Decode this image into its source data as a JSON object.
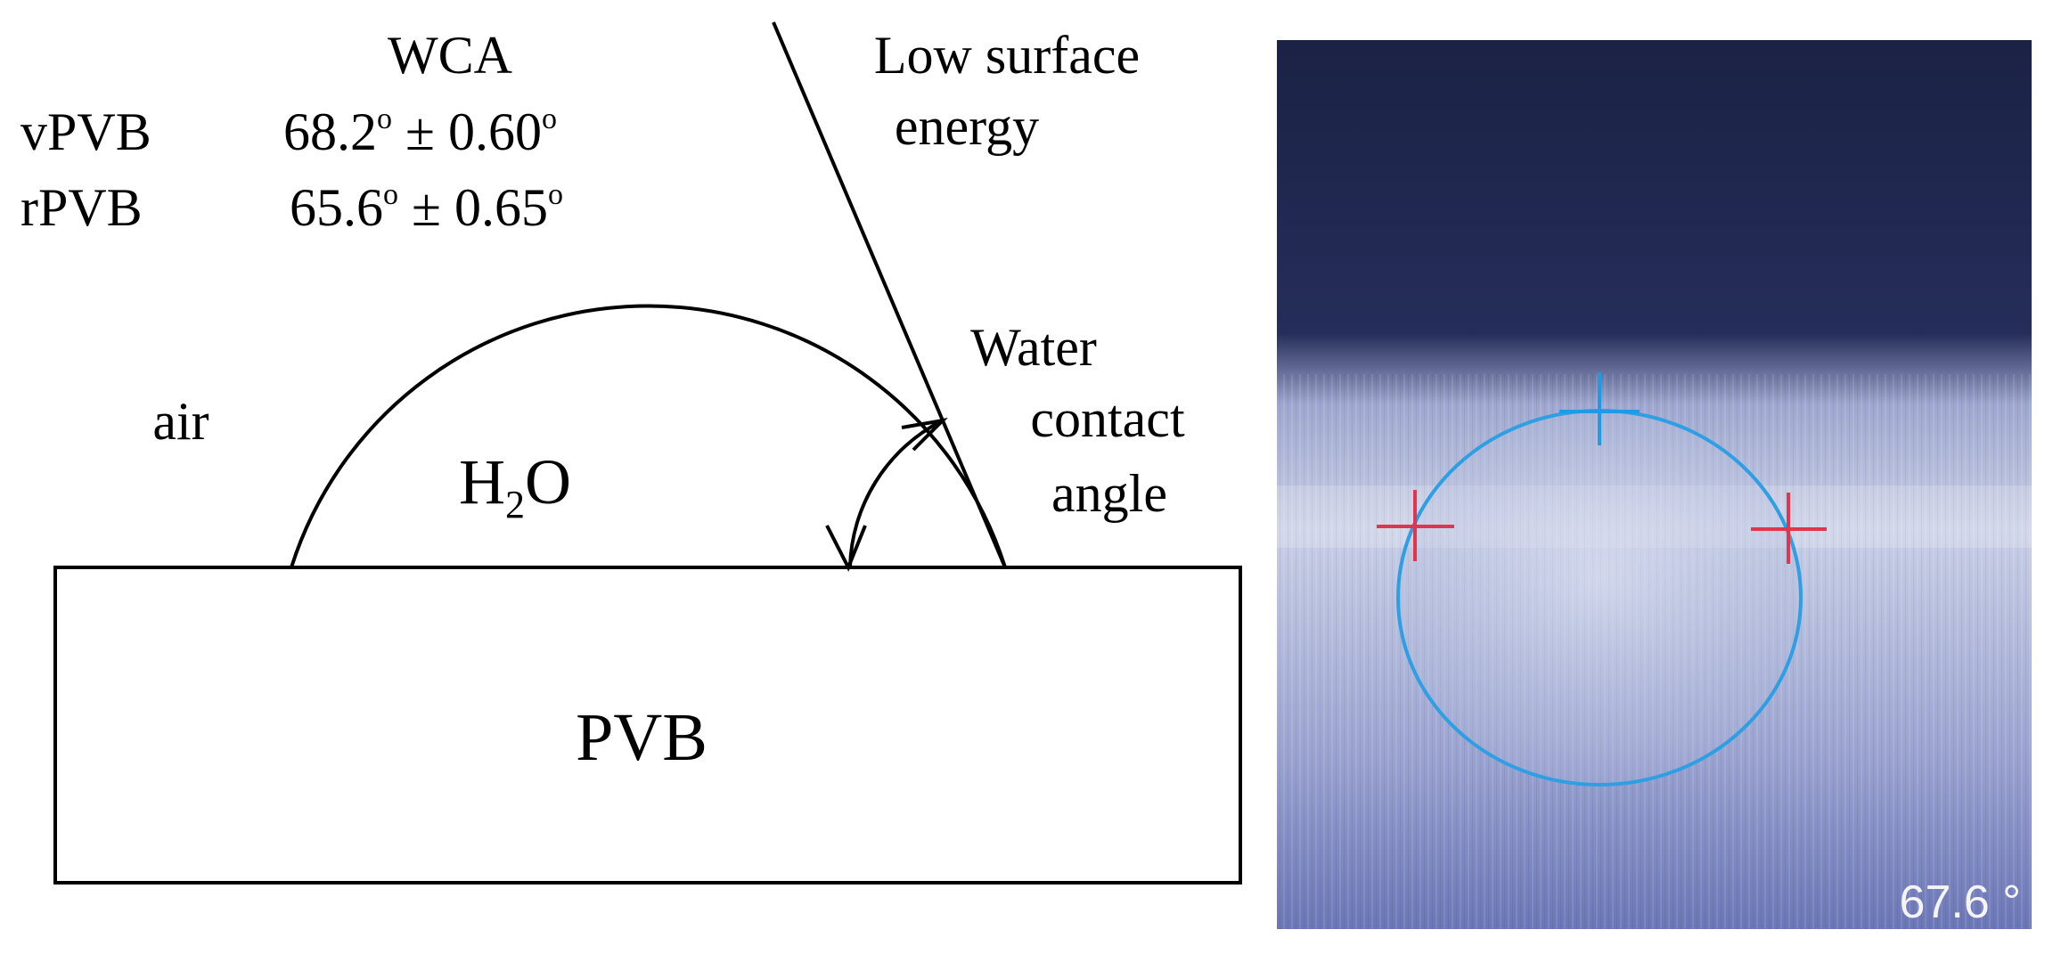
{
  "diagram": {
    "table": {
      "header": "WCA",
      "rows": [
        {
          "sample": "vPVB",
          "value": "68.2",
          "deg1": "o",
          "pm": "±",
          "err": "0.60",
          "deg2": "o"
        },
        {
          "sample": "rPVB",
          "value": "65.6",
          "deg1": "o",
          "pm": "±",
          "err": "0.65",
          "deg2": "o"
        }
      ]
    },
    "labels": {
      "low_surface_line1": "Low surface",
      "low_surface_line2": "energy",
      "air": "air",
      "water_formula_h": "H",
      "water_formula_sub": "2",
      "water_formula_o": "O",
      "wca_line1": "Water",
      "wca_line2": "contact",
      "wca_line3": "angle",
      "substrate": "PVB"
    }
  },
  "photo": {
    "angle_readout": "67.6 °",
    "colors": {
      "background_top": "#1c2347",
      "background_bottom": "#7b85bf",
      "drop_outline": "#2f9fe3",
      "apex_marker": "#1d9be6",
      "baseline_markers": "#e0354d"
    }
  }
}
